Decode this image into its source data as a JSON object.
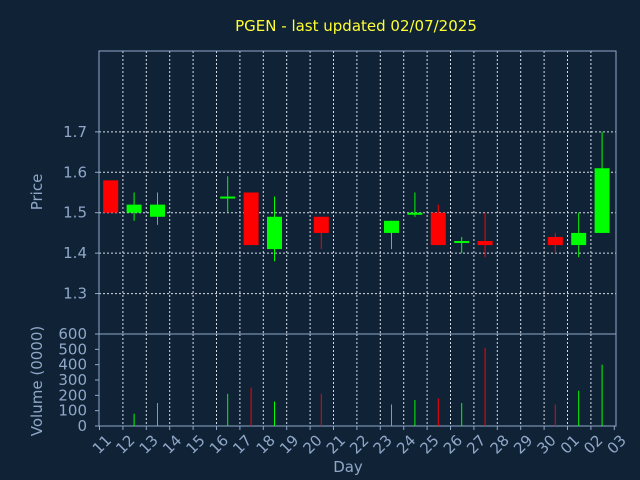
{
  "chart_data": {
    "type": "candlestick",
    "title": "PGEN - last updated 02/07/2025",
    "xlabel": "Day",
    "price_panel": {
      "ylabel": "Price",
      "ylim": [
        1.2,
        1.9
      ],
      "yticks": [
        1.3,
        1.4,
        1.5,
        1.6,
        1.7
      ]
    },
    "volume_panel": {
      "ylabel": "Volume (0000)",
      "ylim": [
        0,
        600
      ],
      "yticks": [
        0,
        100,
        200,
        300,
        400,
        500,
        600
      ]
    },
    "x_ticks": [
      "11",
      "12",
      "13",
      "14",
      "15",
      "16",
      "17",
      "18",
      "19",
      "20",
      "21",
      "22",
      "23",
      "24",
      "25",
      "26",
      "27",
      "28",
      "29",
      "30",
      "01",
      "02",
      "03"
    ],
    "candles": [
      {
        "day": "11",
        "open": 1.58,
        "high": 1.58,
        "low": 1.5,
        "close": 1.5,
        "volume": 0
      },
      {
        "day": "12",
        "open": 1.5,
        "high": 1.55,
        "low": 1.48,
        "close": 1.52,
        "volume": 80
      },
      {
        "day": "13",
        "open": 1.49,
        "high": 1.55,
        "low": 1.47,
        "close": 1.52,
        "volume": 150
      },
      {
        "day": "16",
        "open": 1.54,
        "high": 1.59,
        "low": 1.5,
        "close": 1.54,
        "volume": 210
      },
      {
        "day": "17",
        "open": 1.55,
        "high": 1.55,
        "low": 1.42,
        "close": 1.42,
        "volume": 250
      },
      {
        "day": "18",
        "open": 1.41,
        "high": 1.54,
        "low": 1.38,
        "close": 1.49,
        "volume": 160
      },
      {
        "day": "20",
        "open": 1.49,
        "high": 1.49,
        "low": 1.41,
        "close": 1.45,
        "volume": 210
      },
      {
        "day": "23",
        "open": 1.45,
        "high": 1.48,
        "low": 1.41,
        "close": 1.48,
        "volume": 140
      },
      {
        "day": "24",
        "open": 1.5,
        "high": 1.55,
        "low": 1.49,
        "close": 1.5,
        "volume": 170
      },
      {
        "day": "25",
        "open": 1.5,
        "high": 1.52,
        "low": 1.42,
        "close": 1.42,
        "volume": 180
      },
      {
        "day": "26",
        "open": 1.43,
        "high": 1.44,
        "low": 1.4,
        "close": 1.43,
        "volume": 150
      },
      {
        "day": "27",
        "open": 1.43,
        "high": 1.5,
        "low": 1.39,
        "close": 1.42,
        "volume": 510
      },
      {
        "day": "30",
        "open": 1.44,
        "high": 1.45,
        "low": 1.4,
        "close": 1.42,
        "volume": 140
      },
      {
        "day": "01",
        "open": 1.42,
        "high": 1.5,
        "low": 1.39,
        "close": 1.45,
        "volume": 230
      },
      {
        "day": "02",
        "open": 1.45,
        "high": 1.7,
        "low": 1.45,
        "close": 1.61,
        "volume": 400
      }
    ],
    "grid": true,
    "colors": {
      "background": "#102236",
      "up": "#00ff00",
      "down": "#ff0000",
      "title": "#ffff33",
      "axis": "#8fa8c8",
      "grid": "#d8dde6"
    }
  }
}
